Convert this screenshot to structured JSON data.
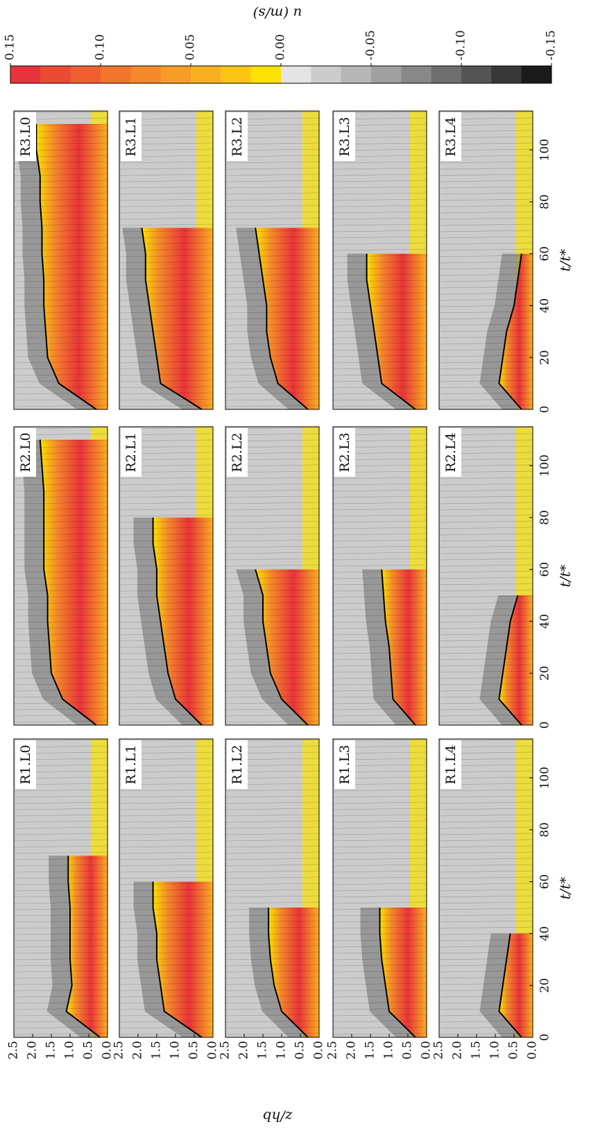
{
  "chart_data": [
    {
      "type": "contour",
      "label": "R1.L0",
      "x": [
        0,
        10,
        20,
        30,
        40,
        50,
        60,
        70,
        80,
        90,
        100,
        110
      ],
      "values": [
        0.2,
        1.1,
        0.95,
        1.0,
        1.0,
        1.0,
        1.05,
        1.05,
        null,
        null,
        null,
        null
      ],
      "xlim": [
        0,
        115
      ],
      "ylim": [
        0,
        2.5
      ],
      "yticks": [
        {
          "value": 0,
          "label": "0.0"
        },
        {
          "value": 0.5,
          "label": "0.5"
        },
        {
          "value": 1,
          "label": "1.0"
        },
        {
          "value": 1.5,
          "label": "1.5"
        },
        {
          "value": 2,
          "label": "2.0"
        },
        {
          "value": 2.5,
          "label": "2.5"
        }
      ]
    },
    {
      "type": "contour",
      "label": "R1.L1",
      "x": [
        0,
        10,
        20,
        30,
        40,
        50,
        60,
        70,
        80,
        90,
        100,
        110
      ],
      "values": [
        0.3,
        1.3,
        1.4,
        1.5,
        1.5,
        1.6,
        1.6,
        null,
        null,
        null,
        null,
        null
      ],
      "xlim": [
        0,
        115
      ],
      "ylim": [
        0,
        2.5
      ],
      "yticks": [
        {
          "value": 0,
          "label": "0.0"
        },
        {
          "value": 0.5,
          "label": "0.5"
        },
        {
          "value": 1,
          "label": "1.0"
        },
        {
          "value": 1.5,
          "label": "1.5"
        },
        {
          "value": 2,
          "label": "2.0"
        },
        {
          "value": 2.5,
          "label": "2.5"
        }
      ]
    },
    {
      "type": "contour",
      "label": "R1.L2",
      "x": [
        0,
        10,
        20,
        30,
        40,
        50,
        60,
        70,
        80,
        90,
        100,
        110
      ],
      "values": [
        0.3,
        1.0,
        1.2,
        1.3,
        1.35,
        1.35,
        null,
        null,
        null,
        null,
        null,
        null
      ],
      "xlim": [
        0,
        115
      ],
      "ylim": [
        0,
        2.5
      ],
      "yticks": [
        {
          "value": 0,
          "label": "0.0"
        },
        {
          "value": 0.5,
          "label": "0.5"
        },
        {
          "value": 1,
          "label": "1.0"
        },
        {
          "value": 1.5,
          "label": "1.5"
        },
        {
          "value": 2,
          "label": "2.0"
        },
        {
          "value": 2.5,
          "label": "2.5"
        }
      ]
    },
    {
      "type": "contour",
      "label": "R1.L3",
      "x": [
        0,
        10,
        20,
        30,
        40,
        50,
        60,
        70,
        80,
        90,
        100,
        110
      ],
      "values": [
        0.3,
        1.0,
        1.1,
        1.2,
        1.25,
        1.25,
        null,
        null,
        null,
        null,
        null,
        null
      ],
      "xlim": [
        0,
        115
      ],
      "ylim": [
        0,
        2.5
      ],
      "yticks": [
        {
          "value": 0,
          "label": "0.0"
        },
        {
          "value": 0.5,
          "label": "0.5"
        },
        {
          "value": 1,
          "label": "1.0"
        },
        {
          "value": 1.5,
          "label": "1.5"
        },
        {
          "value": 2,
          "label": "2.0"
        },
        {
          "value": 2.5,
          "label": "2.5"
        }
      ]
    },
    {
      "type": "contour",
      "label": "R1.L4",
      "x": [
        0,
        10,
        20,
        30,
        40,
        50,
        60,
        70,
        80,
        90,
        100,
        110
      ],
      "values": [
        0.3,
        0.9,
        0.8,
        0.7,
        0.6,
        null,
        null,
        null,
        null,
        null,
        null,
        null
      ],
      "xlim": [
        0,
        115
      ],
      "ylim": [
        0,
        2.5
      ],
      "yticks": [
        {
          "value": 0,
          "label": "0.0"
        },
        {
          "value": 0.5,
          "label": "0.5"
        },
        {
          "value": 1,
          "label": "1.0"
        },
        {
          "value": 1.5,
          "label": "1.5"
        },
        {
          "value": 2,
          "label": "2.0"
        },
        {
          "value": 2.5,
          "label": "2.5"
        }
      ],
      "xticks": [
        0,
        20,
        40,
        60,
        80,
        100
      ],
      "xlabel": "t/t*"
    },
    {
      "type": "contour",
      "label": "R2.L0",
      "x": [
        0,
        10,
        20,
        30,
        40,
        50,
        60,
        70,
        80,
        90,
        100,
        110
      ],
      "values": [
        0.3,
        1.2,
        1.5,
        1.55,
        1.6,
        1.6,
        1.7,
        1.7,
        1.7,
        1.7,
        1.75,
        1.8
      ],
      "xlim": [
        0,
        115
      ],
      "ylim": [
        0,
        2.5
      ]
    },
    {
      "type": "contour",
      "label": "R2.L1",
      "x": [
        0,
        10,
        20,
        30,
        40,
        50,
        60,
        70,
        80,
        90,
        100,
        110
      ],
      "values": [
        0.3,
        1.0,
        1.2,
        1.3,
        1.4,
        1.5,
        1.5,
        1.6,
        1.6,
        null,
        null,
        null
      ],
      "xlim": [
        0,
        115
      ],
      "ylim": [
        0,
        2.5
      ]
    },
    {
      "type": "contour",
      "label": "R2.L2",
      "x": [
        0,
        10,
        20,
        30,
        40,
        50,
        60,
        70,
        80,
        90,
        100,
        110
      ],
      "values": [
        0.3,
        1.0,
        1.3,
        1.4,
        1.5,
        1.5,
        1.7,
        null,
        null,
        null,
        null,
        null
      ],
      "xlim": [
        0,
        115
      ],
      "ylim": [
        0,
        2.5
      ]
    },
    {
      "type": "contour",
      "label": "R2.L3",
      "x": [
        0,
        10,
        20,
        30,
        40,
        50,
        60,
        70,
        80,
        90,
        100,
        110
      ],
      "values": [
        0.3,
        0.9,
        0.95,
        1.0,
        1.1,
        1.15,
        1.2,
        null,
        null,
        null,
        null,
        null
      ],
      "xlim": [
        0,
        115
      ],
      "ylim": [
        0,
        2.5
      ]
    },
    {
      "type": "contour",
      "label": "R2.L4",
      "x": [
        0,
        10,
        20,
        30,
        40,
        50,
        60,
        70,
        80,
        90,
        100,
        110
      ],
      "values": [
        0.3,
        0.9,
        0.8,
        0.7,
        0.6,
        0.4,
        null,
        null,
        null,
        null,
        null,
        null
      ],
      "xlim": [
        0,
        115
      ],
      "ylim": [
        0,
        2.5
      ],
      "xticks": [
        0,
        20,
        40,
        60,
        80,
        100
      ],
      "xlabel": "t/t*"
    },
    {
      "type": "contour",
      "label": "R3.L0",
      "x": [
        0,
        10,
        20,
        30,
        40,
        50,
        60,
        70,
        80,
        90,
        100,
        110
      ],
      "values": [
        0.3,
        1.3,
        1.6,
        1.65,
        1.7,
        1.7,
        1.75,
        1.75,
        1.8,
        1.8,
        1.9,
        1.9
      ],
      "xlim": [
        0,
        115
      ],
      "ylim": [
        0,
        2.5
      ]
    },
    {
      "type": "contour",
      "label": "R3.L1",
      "x": [
        0,
        10,
        20,
        30,
        40,
        50,
        60,
        70,
        80,
        90,
        100,
        110
      ],
      "values": [
        0.3,
        1.4,
        1.5,
        1.6,
        1.7,
        1.8,
        1.8,
        1.9,
        null,
        null,
        null,
        null
      ],
      "xlim": [
        0,
        115
      ],
      "ylim": [
        0,
        2.5
      ]
    },
    {
      "type": "contour",
      "label": "R3.L2",
      "x": [
        0,
        10,
        20,
        30,
        40,
        50,
        60,
        70,
        80,
        90,
        100,
        110
      ],
      "values": [
        0.3,
        1.1,
        1.3,
        1.4,
        1.4,
        1.5,
        1.6,
        1.7,
        null,
        null,
        null,
        null
      ],
      "xlim": [
        0,
        115
      ],
      "ylim": [
        0,
        2.5
      ]
    },
    {
      "type": "contour",
      "label": "R3.L3",
      "x": [
        0,
        10,
        20,
        30,
        40,
        50,
        60,
        70,
        80,
        90,
        100,
        110
      ],
      "values": [
        0.3,
        1.2,
        1.3,
        1.4,
        1.5,
        1.6,
        1.6,
        null,
        null,
        null,
        null,
        null
      ],
      "xlim": [
        0,
        115
      ],
      "ylim": [
        0,
        2.5
      ]
    },
    {
      "type": "contour",
      "label": "R3.L4",
      "x": [
        0,
        10,
        20,
        30,
        40,
        50,
        60,
        70,
        80,
        90,
        100,
        110
      ],
      "values": [
        0.3,
        0.9,
        0.8,
        0.7,
        0.5,
        0.4,
        0.3,
        null,
        null,
        null,
        null,
        null
      ],
      "xlim": [
        0,
        115
      ],
      "ylim": [
        0,
        2.5
      ],
      "xticks": [
        0,
        20,
        40,
        60,
        80,
        100
      ],
      "xlabel": "t/t*"
    }
  ],
  "ylabel": "z/hb",
  "colorbar": {
    "label": "u (m/s)",
    "clim": [
      -0.15,
      0.15
    ],
    "colors": [
      "#e8333a",
      "#ec4a33",
      "#ef5f30",
      "#f2742d",
      "#f4882a",
      "#f79c26",
      "#f9b020",
      "#fcc516",
      "#fbe200",
      "#e4e4e4",
      "#cccccc",
      "#b6b6b6",
      "#a0a0a0",
      "#888888",
      "#6e6e6e",
      "#545454",
      "#383838",
      "#1a1a1a"
    ],
    "ticks": [
      {
        "value": 0.15,
        "label": "0.15"
      },
      {
        "value": 0.1,
        "label": "0.10"
      },
      {
        "value": 0.05,
        "label": "0.05"
      },
      {
        "value": 0,
        "label": "0.00"
      },
      {
        "value": -0.05,
        "label": "-0.05"
      },
      {
        "value": -0.1,
        "label": "-0.10"
      },
      {
        "value": -0.15,
        "label": "-0.15"
      }
    ]
  }
}
